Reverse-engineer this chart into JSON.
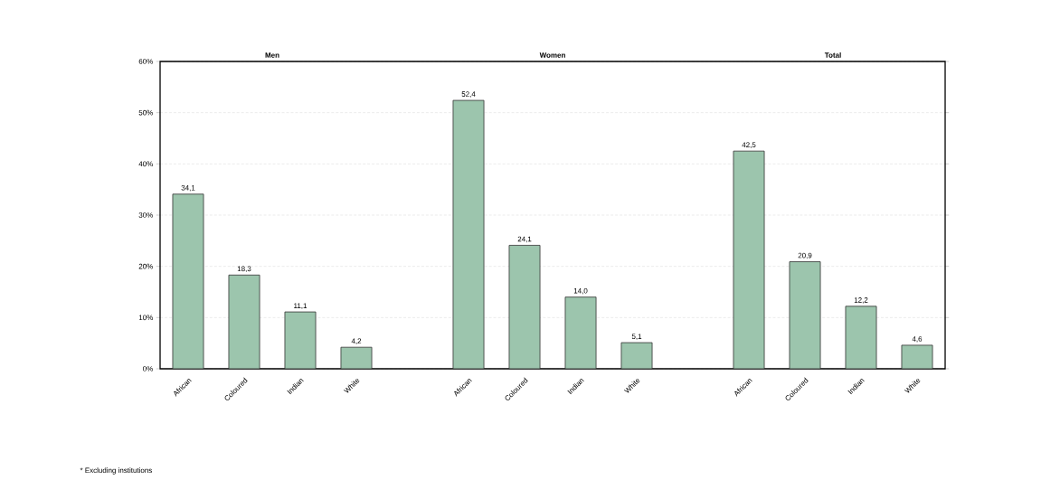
{
  "chart_data": {
    "type": "bar",
    "categories": [
      "African",
      "Coloured",
      "Indian",
      "White",
      null,
      "African",
      "Coloured",
      "Indian",
      "White",
      null,
      "African",
      "Coloured",
      "Indian",
      "White"
    ],
    "values": [
      34.1,
      18.3,
      11.1,
      4.2,
      null,
      52.4,
      24.1,
      14.0,
      5.1,
      null,
      42.5,
      20.9,
      12.2,
      4.6
    ],
    "value_labels": [
      "34,1",
      "18,3",
      "11,1",
      "4,2",
      null,
      "52,4",
      "24,1",
      "14,0",
      "5,1",
      null,
      "42,5",
      "20,9",
      "12,2",
      "4,6"
    ],
    "color": "#9cc5ad",
    "ylim": [
      0,
      60
    ],
    "yticks": [
      {
        "value": 0,
        "label": "0%"
      },
      {
        "value": 10,
        "label": "10%"
      },
      {
        "value": 20,
        "label": "20%"
      },
      {
        "value": 30,
        "label": "30%"
      },
      {
        "value": 40,
        "label": "40%"
      },
      {
        "value": 50,
        "label": "50%"
      },
      {
        "value": 60,
        "label": "60%"
      }
    ],
    "grid": "y",
    "annotations": [
      "Men",
      "Women",
      "Total",
      "* Excluding institutions"
    ]
  }
}
